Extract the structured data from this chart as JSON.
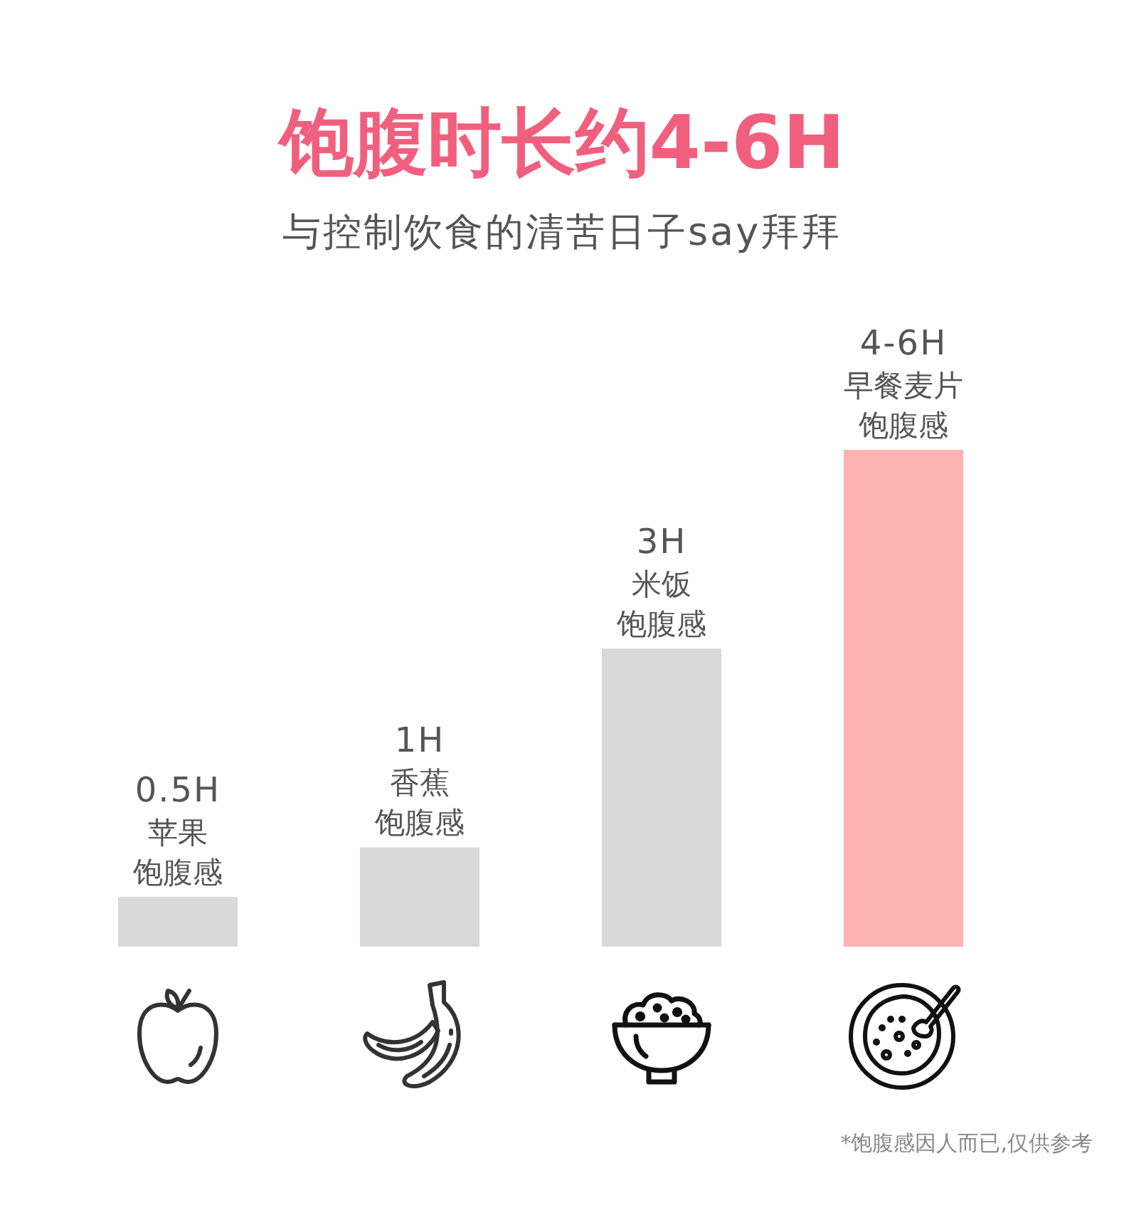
{
  "chart_data": {
    "type": "bar",
    "title": "饱腹时长约4-6H",
    "subtitle": "与控制饮食的清苦日子say拜拜",
    "categories": [
      "苹果饱腹感",
      "香蕉饱腹感",
      "米饭饱腹感",
      "早餐麦片饱腹感"
    ],
    "values": [
      0.5,
      1,
      3,
      5
    ],
    "ylim": [
      0,
      5
    ],
    "tick_labels": "x",
    "value_labels": [
      "0.5H",
      "1H",
      "3H",
      "4-6H"
    ],
    "colors": [
      "#d9d9d9",
      "#d9d9d9",
      "#d9d9d9",
      "#ffb2b1"
    ],
    "annotations": [
      "*饱腹感因人而已,仅供参考"
    ]
  }
}
